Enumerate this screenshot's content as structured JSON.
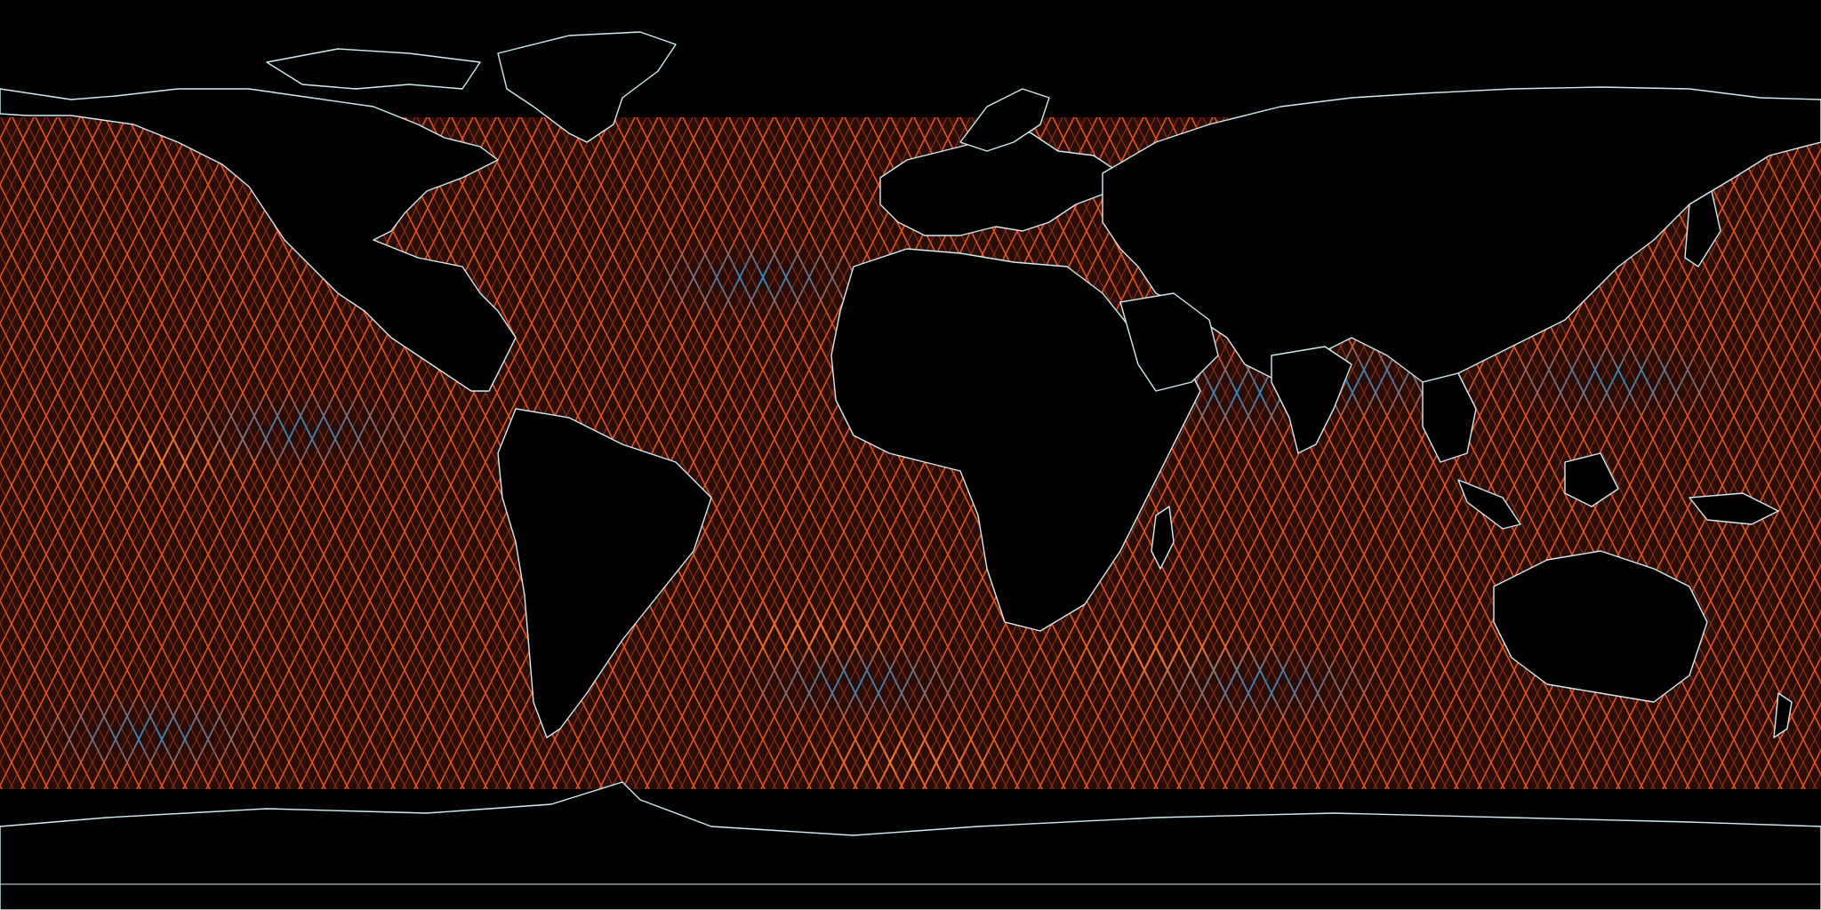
{
  "map": {
    "projection": "equirectangular",
    "background_color": "#000000",
    "land_fill_color": "#000000",
    "coastline_color": "#cfeef4",
    "track_color_default": "#e8521c",
    "track_color_positive": "#ff6a1f",
    "track_color_negative": "#1e8fd6",
    "track_crossing_pattern": "diamond-lattice",
    "ocean_background_tint": "#2a0d05",
    "anomaly_regions_negative": [
      {
        "name": "north-atlantic-subpolar",
        "lon": -30,
        "lat": 35
      },
      {
        "name": "eastern-tropical-pacific",
        "lon": -120,
        "lat": 5
      },
      {
        "name": "western-tropical-pacific",
        "lon": 140,
        "lat": 15
      },
      {
        "name": "southern-ocean-atlantic",
        "lon": -10,
        "lat": -45
      },
      {
        "name": "southern-ocean-indian",
        "lon": 70,
        "lat": -45
      },
      {
        "name": "southern-ocean-pacific",
        "lon": -150,
        "lat": -55
      },
      {
        "name": "arabian-sea",
        "lon": 65,
        "lat": 12
      },
      {
        "name": "bay-of-bengal",
        "lon": 88,
        "lat": 15
      }
    ],
    "anomaly_regions_positive": [
      {
        "name": "central-pacific-band",
        "lon": -150,
        "lat": 0
      },
      {
        "name": "southern-atlantic",
        "lon": -20,
        "lat": -35
      },
      {
        "name": "southern-indian",
        "lon": 50,
        "lat": -40
      },
      {
        "name": "antarctic-margin",
        "lon": 0,
        "lat": -60
      }
    ]
  }
}
